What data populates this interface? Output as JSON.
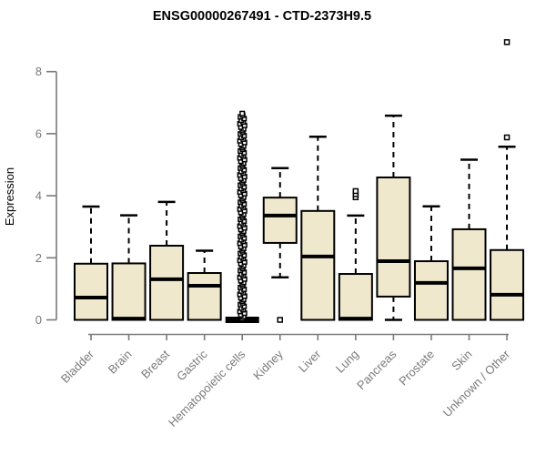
{
  "chart_data": {
    "type": "boxplot",
    "title": "ENSG00000267491 - CTD-2373H9.5",
    "ylabel": "Expression",
    "xlabel": "",
    "ylim": [
      0,
      9.2
    ],
    "yticks": [
      0,
      2,
      4,
      6,
      8
    ],
    "grid": false,
    "legend_position": "none",
    "colors": {
      "box_fill": "#EFE8CC",
      "box_border": "#000000",
      "median": "#000000",
      "whisker": "#000000",
      "outlier_stroke": "#000000",
      "outlier_fill": "#FFFFFF",
      "axis": "#7A7A7A",
      "tick_label": "#7A7A7A",
      "title": "#000000",
      "background": "#FFFFFF"
    },
    "categories": [
      "Bladder",
      "Brain",
      "Breast",
      "Gastric",
      "Hematopoietic cells",
      "Kidney",
      "Liver",
      "Lung",
      "Pancreas",
      "Prostate",
      "Skin",
      "Unknown / Other"
    ],
    "series": [
      {
        "label": "Bladder",
        "whisker_low": 0,
        "q1": 0,
        "median": 0.72,
        "q3": 1.81,
        "whisker_high": 3.65,
        "outliers": []
      },
      {
        "label": "Brain",
        "whisker_low": 0,
        "q1": 0,
        "median": 0.04,
        "q3": 1.82,
        "whisker_high": 3.37,
        "outliers": []
      },
      {
        "label": "Breast",
        "whisker_low": 0,
        "q1": 0,
        "median": 1.31,
        "q3": 2.39,
        "whisker_high": 3.8,
        "outliers": []
      },
      {
        "label": "Gastric",
        "whisker_low": 0,
        "q1": 0,
        "median": 1.1,
        "q3": 1.51,
        "whisker_high": 2.23,
        "outliers": []
      },
      {
        "label": "Hematopoietic cells",
        "whisker_low": 0,
        "q1": 0,
        "median": 0,
        "q3": 0,
        "whisker_high": 0,
        "outlier_jitter": true,
        "outliers": [
          0.05,
          0.105,
          0.16,
          0.215,
          0.27,
          0.325,
          0.38,
          0.435,
          0.49,
          0.545,
          0.6,
          0.655,
          0.71,
          0.765,
          0.82,
          0.875,
          0.93,
          0.985,
          1.04,
          1.095,
          1.15,
          1.205,
          1.26,
          1.315,
          1.37,
          1.425,
          1.48,
          1.535,
          1.59,
          1.645,
          1.7,
          1.755,
          1.81,
          1.865,
          1.92,
          1.975,
          2.03,
          2.085,
          2.14,
          2.195,
          2.25,
          2.305,
          2.36,
          2.415,
          2.47,
          2.525,
          2.58,
          2.635,
          2.69,
          2.745,
          2.8,
          2.855,
          2.91,
          2.965,
          3.02,
          3.075,
          3.13,
          3.185,
          3.24,
          3.295,
          3.35,
          3.405,
          3.46,
          3.515,
          3.57,
          3.625,
          3.68,
          3.735,
          3.79,
          3.845,
          3.9,
          3.955,
          4.01,
          4.065,
          4.12,
          4.175,
          4.23,
          4.285,
          4.34,
          4.395,
          4.45,
          4.505,
          4.56,
          4.615,
          4.67,
          4.725,
          4.78,
          4.835,
          4.89,
          4.945,
          5.0,
          5.055,
          5.11,
          5.165,
          5.22,
          5.275,
          5.33,
          5.385,
          5.44,
          5.495,
          5.55,
          5.605,
          5.66,
          5.715,
          5.77,
          5.825,
          5.88,
          5.935,
          5.99,
          6.045,
          6.1,
          6.155,
          6.21,
          6.265,
          6.32,
          6.375,
          6.43,
          6.485,
          6.54,
          6.595,
          6.65
        ]
      },
      {
        "label": "Kidney",
        "whisker_low": 1.37,
        "q1": 2.48,
        "median": 3.36,
        "q3": 3.94,
        "whisker_high": 4.89,
        "outliers": [
          0
        ]
      },
      {
        "label": "Liver",
        "whisker_low": 0,
        "q1": 0,
        "median": 2.04,
        "q3": 3.51,
        "whisker_high": 5.9,
        "outliers": []
      },
      {
        "label": "Lung",
        "whisker_low": 0,
        "q1": 0,
        "median": 0.04,
        "q3": 1.48,
        "whisker_high": 3.36,
        "outliers": [
          3.95,
          4.05,
          4.15
        ]
      },
      {
        "label": "Pancreas",
        "whisker_low": 0,
        "q1": 0.75,
        "median": 1.89,
        "q3": 4.59,
        "whisker_high": 6.58,
        "outliers": []
      },
      {
        "label": "Prostate",
        "whisker_low": 0,
        "q1": 0,
        "median": 1.19,
        "q3": 1.89,
        "whisker_high": 3.66,
        "outliers": []
      },
      {
        "label": "Skin",
        "whisker_low": 0,
        "q1": 0,
        "median": 1.66,
        "q3": 2.92,
        "whisker_high": 5.16,
        "outliers": []
      },
      {
        "label": "Unknown / Other",
        "whisker_low": 0,
        "q1": 0,
        "median": 0.81,
        "q3": 2.25,
        "whisker_high": 5.58,
        "outliers": [
          5.88,
          8.95
        ]
      }
    ]
  }
}
